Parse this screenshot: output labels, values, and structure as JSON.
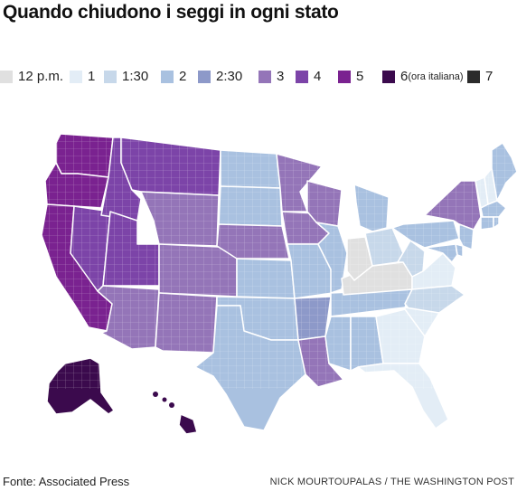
{
  "title": "Quando chiudono i seggi in ogni stato",
  "legend": [
    {
      "label": "12 p.m.",
      "sub": "",
      "color": "#e0e0e0"
    },
    {
      "label": "1",
      "sub": "",
      "color": "#e3edf6"
    },
    {
      "label": "1:30",
      "sub": "",
      "color": "#c7d8ea"
    },
    {
      "label": "2",
      "sub": "",
      "color": "#a9c1e0"
    },
    {
      "label": "2:30",
      "sub": "",
      "color": "#8d99c9"
    },
    {
      "label": "3",
      "sub": "",
      "color": "#9475b8"
    },
    {
      "label": "4",
      "sub": "",
      "color": "#7c44a8"
    },
    {
      "label": "5",
      "sub": "",
      "color": "#7a2290"
    },
    {
      "label": "6",
      "sub": "(ora italiana)",
      "color": "#3b0a4d"
    },
    {
      "label": "7",
      "sub": "",
      "color": "#2b2b2b"
    }
  ],
  "states": [
    {
      "name": "WA",
      "legend": "5"
    },
    {
      "name": "OR",
      "legend": "5"
    },
    {
      "name": "CA",
      "legend": "5"
    },
    {
      "name": "NV",
      "legend": "4"
    },
    {
      "name": "UT",
      "legend": "4"
    },
    {
      "name": "ID",
      "legend": "4"
    },
    {
      "name": "MT",
      "legend": "4"
    },
    {
      "name": "WY",
      "legend": "3"
    },
    {
      "name": "AZ",
      "legend": "3"
    },
    {
      "name": "NM",
      "legend": "3"
    },
    {
      "name": "CO",
      "legend": "3"
    },
    {
      "name": "ND",
      "legend": "2"
    },
    {
      "name": "SD",
      "legend": "2"
    },
    {
      "name": "NE",
      "legend": "3"
    },
    {
      "name": "KS",
      "legend": "2"
    },
    {
      "name": "OK",
      "legend": "2"
    },
    {
      "name": "TX",
      "legend": "2"
    },
    {
      "name": "MN",
      "legend": "3"
    },
    {
      "name": "IA",
      "legend": "3"
    },
    {
      "name": "MO",
      "legend": "2"
    },
    {
      "name": "AR",
      "legend": "2:30"
    },
    {
      "name": "LA",
      "legend": "3"
    },
    {
      "name": "WI",
      "legend": "3"
    },
    {
      "name": "IL",
      "legend": "2"
    },
    {
      "name": "MS",
      "legend": "2"
    },
    {
      "name": "AL",
      "legend": "2"
    },
    {
      "name": "TN",
      "legend": "2"
    },
    {
      "name": "KY",
      "legend": "12 p.m."
    },
    {
      "name": "IN",
      "legend": "12 p.m."
    },
    {
      "name": "MI",
      "legend": "2"
    },
    {
      "name": "OH",
      "legend": "1:30"
    },
    {
      "name": "WV",
      "legend": "1:30"
    },
    {
      "name": "VA",
      "legend": "1"
    },
    {
      "name": "NC",
      "legend": "1:30"
    },
    {
      "name": "SC",
      "legend": "1"
    },
    {
      "name": "GA",
      "legend": "1"
    },
    {
      "name": "FL",
      "legend": "1"
    },
    {
      "name": "PA",
      "legend": "2"
    },
    {
      "name": "NY",
      "legend": "3"
    },
    {
      "name": "VT",
      "legend": "1"
    },
    {
      "name": "NH",
      "legend": "1"
    },
    {
      "name": "ME",
      "legend": "2"
    },
    {
      "name": "MA",
      "legend": "2"
    },
    {
      "name": "CT",
      "legend": "2"
    },
    {
      "name": "RI",
      "legend": "2"
    },
    {
      "name": "NJ",
      "legend": "2"
    },
    {
      "name": "MD",
      "legend": "2"
    },
    {
      "name": "DE",
      "legend": "2"
    },
    {
      "name": "AK",
      "legend": "6"
    },
    {
      "name": "HI",
      "legend": "6"
    }
  ],
  "footer": {
    "source": "Fonte: Associated Press",
    "credit": "NICK MOURTOUPALAS / THE WASHINGTON POST"
  }
}
